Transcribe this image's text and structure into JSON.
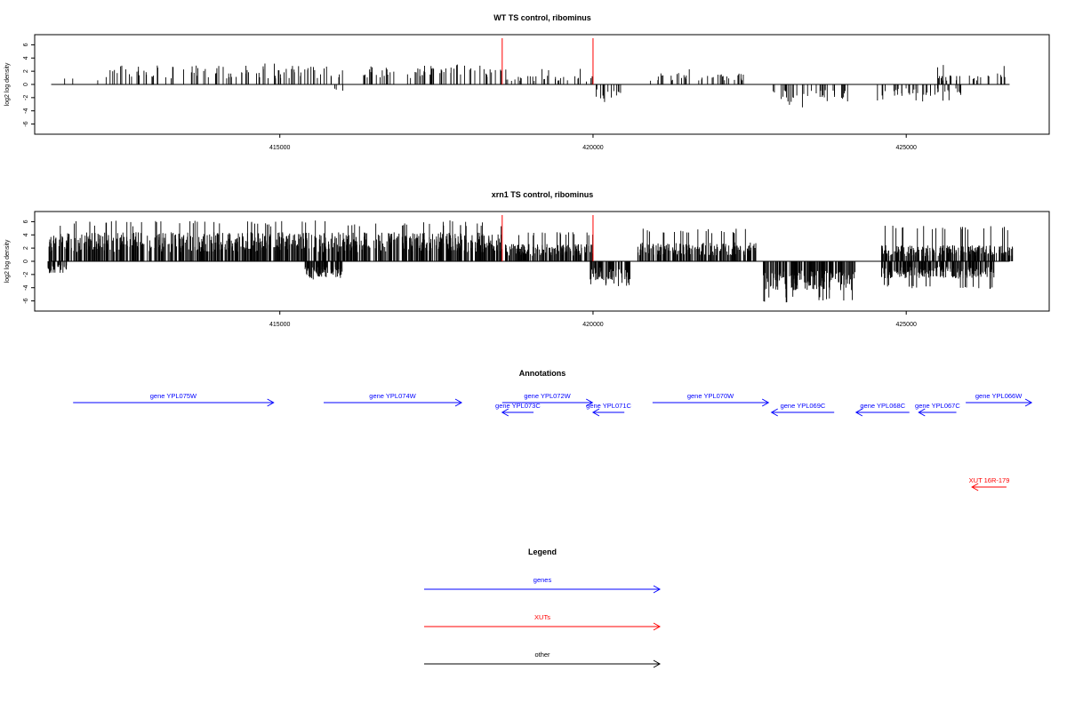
{
  "chart_data": [
    {
      "type": "bar",
      "title": "WT TS control, ribominus",
      "ylabel": "log2 log density",
      "xlabel": "",
      "ylim": [
        -7,
        7
      ],
      "yticks": [
        6,
        4,
        2,
        0,
        -2,
        -4,
        -6
      ],
      "xlim": [
        411200,
        426800
      ],
      "xticks": [
        415000,
        420000,
        425000
      ],
      "grid": false,
      "markers": [
        418550,
        420000
      ],
      "marker_color": "#ff0000",
      "bar_color": "#000000",
      "positive_segments": [
        [
          412200,
          418550,
          2.6,
          3.2
        ],
        [
          418600,
          420000,
          1.2,
          2.4
        ],
        [
          420900,
          422500,
          1.6,
          2.6
        ],
        [
          425500,
          426700,
          1.6,
          3.0
        ]
      ],
      "negative_segments": [
        [
          419980,
          420450,
          2.0,
          2.8
        ],
        [
          422850,
          424100,
          2.4,
          3.6
        ],
        [
          424500,
          426000,
          1.6,
          2.6
        ]
      ],
      "sparse_segments": [
        [
          411300,
          412200,
          1.0
        ],
        [
          415600,
          416100,
          -1.0
        ]
      ]
    },
    {
      "type": "bar",
      "title": "xrn1 TS control, ribominus",
      "ylabel": "log2 log density",
      "xlabel": "",
      "ylim": [
        -7,
        7
      ],
      "yticks": [
        6,
        4,
        2,
        0,
        -2,
        -4,
        -6
      ],
      "xlim": [
        411200,
        426800
      ],
      "xticks": [
        415000,
        420000,
        425000
      ],
      "grid": false,
      "markers": [
        418550,
        420000
      ],
      "marker_color": "#ff0000",
      "bar_color": "#000000",
      "positive_segments": [
        [
          411300,
          418550,
          4.0,
          6.2
        ],
        [
          418600,
          420000,
          2.4,
          4.6
        ],
        [
          420700,
          422600,
          2.6,
          5.0
        ],
        [
          424600,
          426700,
          2.2,
          5.4
        ]
      ],
      "negative_segments": [
        [
          411300,
          411600,
          1.6,
          2.0
        ],
        [
          415400,
          416000,
          2.2,
          2.8
        ],
        [
          419950,
          420600,
          2.6,
          3.8
        ],
        [
          422700,
          424200,
          4.0,
          6.3
        ],
        [
          424600,
          426400,
          2.4,
          4.2
        ]
      ],
      "sparse_segments": []
    }
  ],
  "annotations": {
    "title": "Annotations",
    "features": [
      {
        "label": "gene YPL075W",
        "start": 411700,
        "end": 414900,
        "strand": "+",
        "row": 0,
        "color": "#0000ff"
      },
      {
        "label": "gene YPL074W",
        "start": 415700,
        "end": 417900,
        "strand": "+",
        "row": 0,
        "color": "#0000ff"
      },
      {
        "label": "gene YPL072W",
        "start": 418550,
        "end": 419990,
        "strand": "+",
        "row": 0,
        "color": "#0000ff"
      },
      {
        "label": "gene YPL073C",
        "start": 418550,
        "end": 419050,
        "strand": "-",
        "row": 1,
        "color": "#0000ff"
      },
      {
        "label": "gene YPL071C",
        "start": 420000,
        "end": 420500,
        "strand": "-",
        "row": 1,
        "color": "#0000ff"
      },
      {
        "label": "gene YPL070W",
        "start": 420950,
        "end": 422800,
        "strand": "+",
        "row": 0,
        "color": "#0000ff"
      },
      {
        "label": "gene YPL069C",
        "start": 422850,
        "end": 423850,
        "strand": "-",
        "row": 1,
        "color": "#0000ff"
      },
      {
        "label": "gene YPL068C",
        "start": 424200,
        "end": 425050,
        "strand": "-",
        "row": 1,
        "color": "#0000ff"
      },
      {
        "label": "gene YPL067C",
        "start": 425200,
        "end": 425800,
        "strand": "-",
        "row": 1,
        "color": "#0000ff"
      },
      {
        "label": "gene YPL066W",
        "start": 425950,
        "end": 427000,
        "strand": "+",
        "row": 0,
        "color": "#0000ff"
      },
      {
        "label": "XUT 16R-179",
        "start": 426050,
        "end": 426600,
        "strand": "-",
        "row": 2,
        "color": "#ff0000"
      }
    ]
  },
  "legend": {
    "title": "Legend",
    "items": [
      {
        "label": "genes",
        "color": "#0000ff"
      },
      {
        "label": "XUTs",
        "color": "#ff0000"
      },
      {
        "label": "other",
        "color": "#000000"
      }
    ]
  }
}
